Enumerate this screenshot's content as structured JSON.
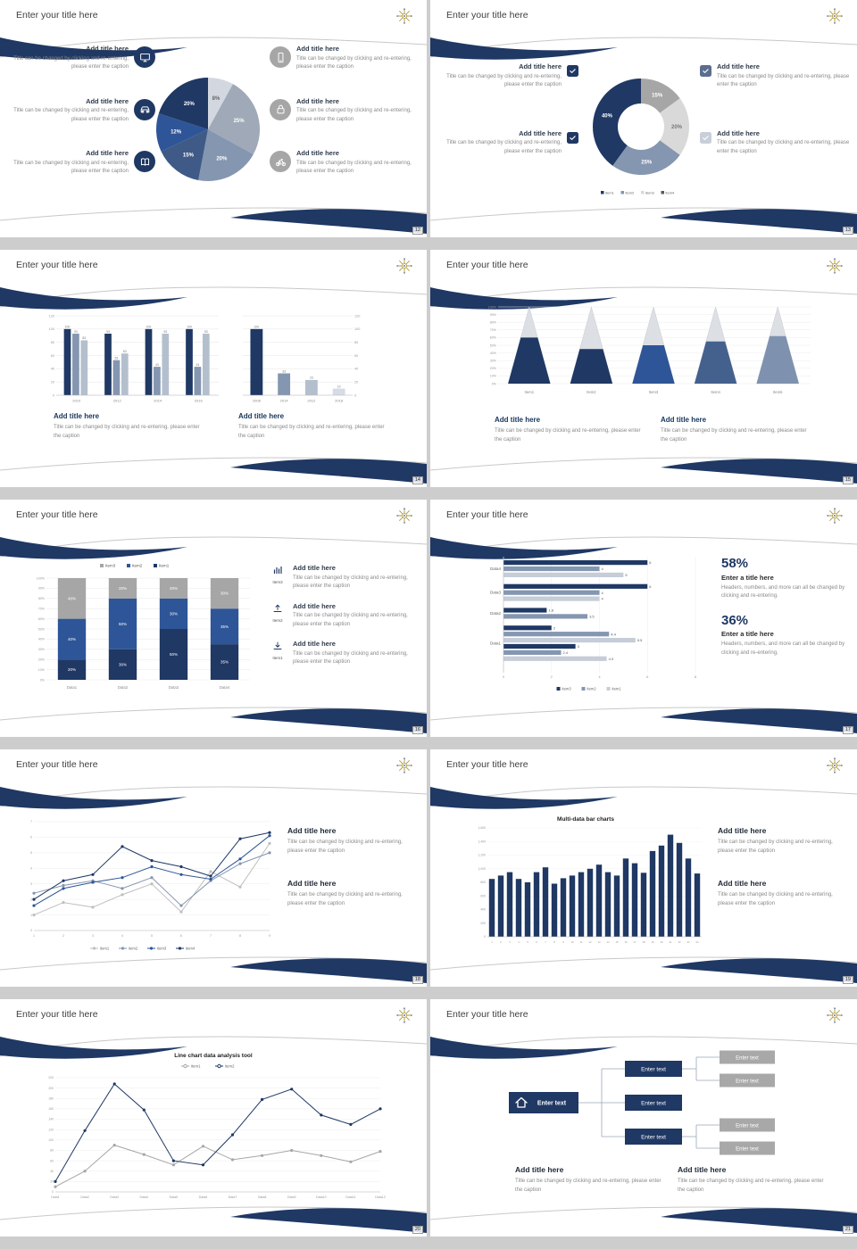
{
  "canvas": {
    "bg": "#cdcdcd",
    "slide_bg": "#ffffff"
  },
  "colors": {
    "navy": "#1f3864",
    "blue": "#2e5597",
    "steel": "#8496b0",
    "light_blue": "#adb9ca",
    "pale": "#d6dce5",
    "gray": "#a6a6a6",
    "accent_gold": "#b09a3e"
  },
  "common": {
    "slide_title": "Enter your title here"
  },
  "slides": {
    "s12": {
      "page": "12",
      "left": [
        {
          "icon": "monitor",
          "bg": "#1f3864",
          "title": "Add title here",
          "caption": "Title can be changed by clicking and re-entering, please enter the caption"
        },
        {
          "icon": "car",
          "bg": "#1f3864",
          "title": "Add title here",
          "caption": "Title can be changed by clicking and re-entering, please enter the caption"
        },
        {
          "icon": "book",
          "bg": "#1f3864",
          "title": "Add title here",
          "caption": "Title can be changed by clicking and re-entering, please enter the caption"
        }
      ],
      "right": [
        {
          "icon": "phone",
          "bg": "#a6a6a6",
          "title": "Add title here",
          "caption": "Title can be changed by clicking and re-entering, please enter the caption"
        },
        {
          "icon": "lock",
          "bg": "#a6a6a6",
          "title": "Add title here",
          "caption": "Title can be changed by clicking and re-entering, please enter the caption"
        },
        {
          "icon": "bike",
          "bg": "#a6a6a6",
          "title": "Add title here",
          "caption": "Title can be changed by clicking and re-entering, please enter the caption"
        }
      ]
    },
    "s13": {
      "page": "13",
      "left": [
        {
          "icon": "check",
          "bg": "#1f3864",
          "title": "Add title here",
          "caption": "Title can be changed by clicking and re-entering, please enter the caption"
        },
        {
          "icon": "check",
          "bg": "#1f3864",
          "title": "Add title here",
          "caption": "Title can be changed by clicking and re-entering, please enter the caption"
        }
      ],
      "right": [
        {
          "icon": "check",
          "bg": "#5b6e8e",
          "title": "Add title here",
          "caption": "Title can be changed by clicking and re-entering, please enter the caption"
        },
        {
          "icon": "check",
          "bg": "#c9cfd9",
          "title": "Add title here",
          "caption": "Title can be changed by clicking and re-entering, please enter the caption"
        }
      ]
    },
    "s14": {
      "page": "14",
      "captions": [
        {
          "title": "Add title here",
          "caption": "Title can be changed by clicking and re-entering, please enter the caption"
        },
        {
          "title": "Add title here",
          "caption": "Title can be changed by clicking and re-entering, please enter the caption"
        }
      ]
    },
    "s15": {
      "page": "15",
      "captions": [
        {
          "title": "Add title here",
          "caption": "Title can be changed by clicking and re-entering, please enter the caption"
        },
        {
          "title": "Add title here",
          "caption": "Title can be changed by clicking and re-entering, please enter the caption"
        }
      ]
    },
    "s16": {
      "page": "16",
      "items": [
        {
          "icon": "bar-chart",
          "tag": "Item3",
          "title": "Add title here",
          "caption": "Title can be changed by clicking and re-entering, please enter the caption"
        },
        {
          "icon": "upload",
          "tag": "Item2",
          "title": "Add title here",
          "caption": "Title can be changed by clicking and re-entering, please enter the caption"
        },
        {
          "icon": "download",
          "tag": "Item1",
          "title": "Add title here",
          "caption": "Title can be changed by clicking and re-entering, please enter the caption"
        }
      ]
    },
    "s17": {
      "page": "17",
      "stats": [
        {
          "value": "58%",
          "title": "Enter a title here",
          "caption": "Headers, numbers, and more can all be changed by clicking and re-entering."
        },
        {
          "value": "36%",
          "title": "Enter a title here",
          "caption": "Headers, numbers, and more can all be changed by clicking and re-entering."
        }
      ]
    },
    "s18": {
      "page": "18",
      "captions": [
        {
          "title": "Add title here",
          "caption": "Title can be changed by clicking and re-entering, please enter the caption"
        },
        {
          "title": "Add title here",
          "caption": "Title can be changed by clicking and re-entering, please enter the caption"
        }
      ]
    },
    "s19": {
      "page": "19",
      "captions": [
        {
          "title": "Add title here",
          "caption": "Title can be changed by clicking and re-entering, please enter the caption"
        },
        {
          "title": "Add title here",
          "caption": "Title can be changed by clicking and re-entering, please enter the caption"
        }
      ]
    },
    "s20": {
      "page": "20"
    },
    "s21": {
      "page": "21",
      "org": {
        "main": "Enter text",
        "mid": [
          "Enter text",
          "Enter text",
          "Enter text"
        ],
        "right": [
          "Enter text",
          "Enter text",
          "Enter text",
          "Enter text"
        ]
      },
      "captions": [
        {
          "title": "Add title here",
          "caption": "Title can be changed by clicking and re-entering, please enter the caption"
        },
        {
          "title": "Add title here",
          "caption": "Title can be changed by clicking and re-entering, please enter the caption"
        }
      ]
    }
  },
  "chart_data": [
    {
      "id": "pie-12",
      "type": "pie",
      "values": [
        8,
        25,
        20,
        15,
        12,
        20
      ],
      "labels": [
        "8%",
        "25%",
        "20%",
        "15%",
        "12%",
        "20%"
      ],
      "colors": [
        "#d3d8e0",
        "#9fa9b7",
        "#8496b0",
        "#3f5a86",
        "#2e5597",
        "#1f3864"
      ],
      "label_colors": [
        "#666666",
        "#ffffff",
        "#ffffff",
        "#ffffff",
        "#ffffff",
        "#ffffff"
      ]
    },
    {
      "id": "donut-13",
      "type": "donut",
      "values": [
        15,
        20,
        25,
        40
      ],
      "labels": [
        "15%",
        "20%",
        "25%",
        "40%"
      ],
      "colors": [
        "#a6a6a6",
        "#d9d9d9",
        "#8496b0",
        "#1f3864"
      ],
      "label_colors": [
        "#ffffff",
        "#777777",
        "#ffffff",
        "#ffffff"
      ],
      "legend": [
        {
          "label": "item1",
          "color": "#1f3864"
        },
        {
          "label": "item2",
          "color": "#8496b0"
        },
        {
          "label": "item3",
          "color": "#d9d9d9"
        },
        {
          "label": "item4",
          "color": "#595959"
        }
      ]
    },
    {
      "id": "bar-14a",
      "type": "bar",
      "categories": [
        "2010",
        "2012",
        "2014",
        "2016"
      ],
      "series": [
        {
          "color": "#1f3864",
          "values": [
            100,
            93,
            100,
            100
          ]
        },
        {
          "color": "#8496b0",
          "values": [
            93,
            53,
            43,
            43
          ]
        },
        {
          "color": "#b4bfce",
          "values": [
            83,
            63,
            93,
            93
          ]
        }
      ],
      "ylim": [
        0,
        120
      ],
      "yticks": [
        0,
        20,
        40,
        60,
        80,
        100,
        120
      ],
      "tick_side": "left"
    },
    {
      "id": "bar-14b",
      "type": "bar",
      "categories": [
        "2008",
        "2014",
        "2012",
        "2018"
      ],
      "values": [
        100,
        33,
        23,
        10
      ],
      "bar_colors": [
        "#1f3864",
        "#8496b0",
        "#b4bfce",
        "#d6dce5"
      ],
      "ylim": [
        0,
        120
      ],
      "yticks": [
        0,
        20,
        40,
        60,
        80,
        100,
        120
      ],
      "tick_side": "right"
    },
    {
      "id": "pyramid-15",
      "type": "pyramid",
      "categories": [
        "Item1",
        "Item2",
        "Item3",
        "Item4",
        "Item5"
      ],
      "fills": [
        60,
        45,
        50,
        55,
        62
      ],
      "fill_colors": [
        "#1f3864",
        "#1f3864",
        "#2e5597",
        "#44618e",
        "#7e92af"
      ],
      "body_color": "#dcdfe4",
      "yticks_pct": [
        0,
        10,
        20,
        30,
        40,
        50,
        60,
        70,
        80,
        90,
        100
      ]
    },
    {
      "id": "stacked-16",
      "type": "stacked",
      "categories": [
        "Data1",
        "Data2",
        "Data3",
        "Data4"
      ],
      "series": [
        {
          "name": "Item1",
          "color": "#1f3864",
          "values": [
            20,
            30,
            50,
            35
          ]
        },
        {
          "name": "Item2",
          "color": "#2e5597",
          "values": [
            40,
            50,
            30,
            35
          ]
        },
        {
          "name": "Item3",
          "color": "#a6a6a6",
          "values": [
            40,
            20,
            20,
            30
          ]
        }
      ],
      "legend": [
        {
          "label": "Item3",
          "color": "#a6a6a6"
        },
        {
          "label": "Item2",
          "color": "#2e5597"
        },
        {
          "label": "Item1",
          "color": "#1f3864"
        }
      ]
    },
    {
      "id": "hbar-17",
      "type": "hbar",
      "categories": [
        "Data4",
        "Data3",
        "Data2",
        "Data1"
      ],
      "rows": [
        [
          6,
          4,
          5
        ],
        [
          6,
          4,
          4
        ],
        [
          1.8,
          3.5
        ],
        [
          2,
          4.4,
          5.5,
          3,
          2.4,
          4.3
        ]
      ],
      "colors": [
        "#1f3864",
        "#8496b0",
        "#c6cdd8"
      ],
      "xticks": [
        0,
        2,
        4,
        6,
        8
      ],
      "legend": [
        {
          "label": "item3",
          "color": "#1f3864"
        },
        {
          "label": "item2",
          "color": "#8496b0"
        },
        {
          "label": "item1",
          "color": "#c6cdd8"
        }
      ]
    },
    {
      "id": "line-18",
      "type": "line",
      "x": [
        "1",
        "2",
        "3",
        "4",
        "5",
        "6",
        "7",
        "8",
        "9"
      ],
      "ymax": 7,
      "yticks": [
        0,
        1,
        2,
        3,
        4,
        5,
        6,
        7
      ],
      "series": [
        {
          "name": "item1",
          "color": "#bfbfbf",
          "values": [
            1,
            1.8,
            1.5,
            2.3,
            3,
            1.2,
            3.8,
            2.8,
            5.6
          ]
        },
        {
          "name": "item2",
          "color": "#8496b0",
          "values": [
            2.4,
            2.9,
            3.2,
            2.7,
            3.4,
            1.6,
            3.2,
            4.3,
            5
          ]
        },
        {
          "name": "item3",
          "color": "#2e5597",
          "values": [
            1.6,
            2.7,
            3.1,
            3.4,
            4.1,
            3.6,
            3.3,
            4.6,
            6.1
          ]
        },
        {
          "name": "item4",
          "color": "#1f3864",
          "values": [
            2,
            3.2,
            3.6,
            5.4,
            4.5,
            4.1,
            3.5,
            5.9,
            6.3
          ]
        }
      ]
    },
    {
      "id": "densebar-19",
      "type": "densebar",
      "title": "Multi-data bar charts",
      "values": [
        850,
        900,
        950,
        850,
        800,
        950,
        1020,
        780,
        860,
        900,
        950,
        1000,
        1060,
        950,
        900,
        1150,
        1080,
        940,
        1260,
        1340,
        1500,
        1380,
        1150,
        930
      ],
      "xlabels": [
        "1",
        "2",
        "3",
        "4",
        "5",
        "6",
        "7",
        "8",
        "9",
        "10",
        "11",
        "12",
        "13",
        "14",
        "15",
        "16",
        "17",
        "18",
        "19",
        "20",
        "21",
        "22",
        "23",
        "24"
      ],
      "ymax": 1600,
      "yticks": [
        "0",
        "200",
        "400",
        "600",
        "800",
        "1,000",
        "1,200",
        "1,400",
        "1,600"
      ],
      "color": "#1f3864"
    },
    {
      "id": "line-20",
      "type": "line",
      "title": "Line chart data analysis tool",
      "legend_top": true,
      "x": [
        "Data1",
        "Data2",
        "Data3",
        "Data4",
        "Data5",
        "Data6",
        "Data7",
        "Data8",
        "Data9",
        "Data10",
        "Data11",
        "Data12"
      ],
      "ymax": 220,
      "yticks": [
        0,
        20,
        40,
        60,
        80,
        100,
        120,
        140,
        160,
        180,
        200,
        220
      ],
      "series": [
        {
          "name": "item1",
          "color": "#a6a6a6",
          "values": [
            10,
            40,
            90,
            72,
            52,
            88,
            62,
            70,
            80,
            70,
            58,
            78
          ]
        },
        {
          "name": "item2",
          "color": "#1f3864",
          "values": [
            20,
            118,
            208,
            158,
            60,
            52,
            110,
            178,
            198,
            148,
            130,
            160
          ]
        }
      ]
    }
  ]
}
